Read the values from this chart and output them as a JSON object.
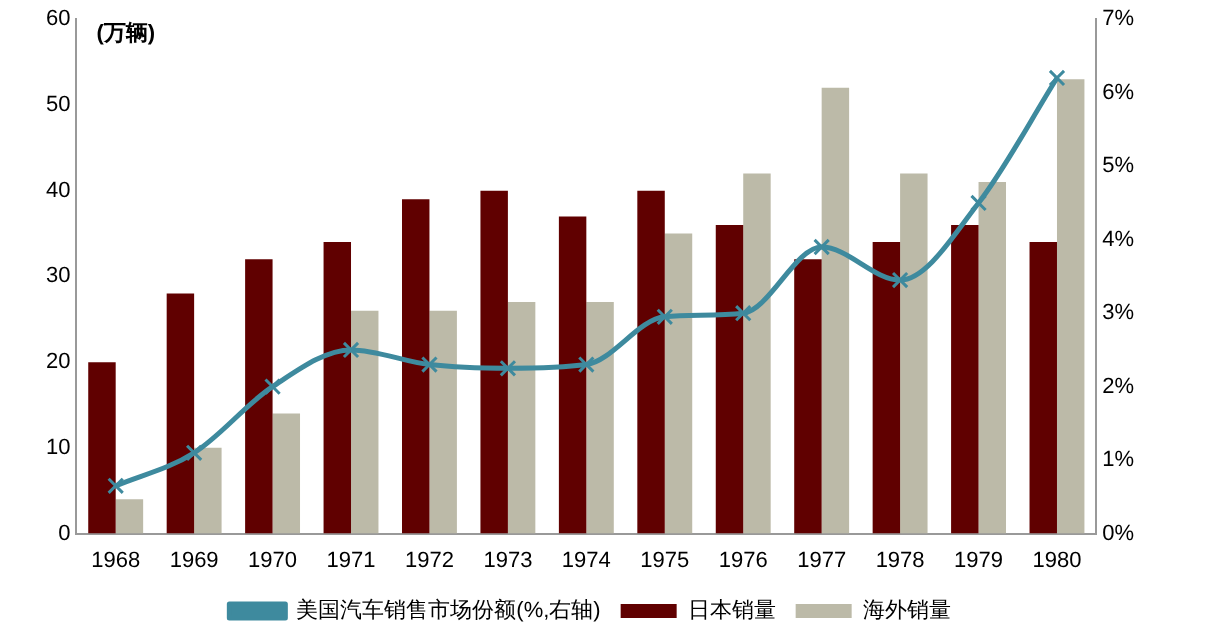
{
  "chart_data": {
    "type": "bar",
    "ylabel": "(万辆)",
    "categories": [
      "1968",
      "1969",
      "1970",
      "1971",
      "1972",
      "1973",
      "1974",
      "1975",
      "1976",
      "1977",
      "1978",
      "1979",
      "1980"
    ],
    "series": [
      {
        "name": "日本销量",
        "color": "#600000",
        "values": [
          20,
          28,
          32,
          34,
          39,
          40,
          37,
          40,
          36,
          32,
          34,
          36,
          34
        ]
      },
      {
        "name": "海外销量",
        "color": "#bcbaa8",
        "values": [
          4,
          10,
          14,
          26,
          26,
          27,
          27,
          35,
          42,
          52,
          42,
          41,
          53
        ]
      },
      {
        "name": "美国汽车销售市场份额(%,右轴)",
        "type": "line",
        "axis": "y2",
        "color": "#3e8a9e",
        "marker": "cross",
        "values": [
          0.65,
          1.1,
          2.0,
          2.5,
          2.3,
          2.25,
          2.3,
          2.95,
          3.0,
          3.9,
          3.45,
          4.5,
          6.2
        ]
      }
    ],
    "ylim": [
      0,
      60
    ],
    "yticks": [
      0,
      10,
      20,
      30,
      40,
      50,
      60
    ],
    "y2lim": [
      0,
      7
    ],
    "y2ticks": [
      {
        "value": 0,
        "label": "0%"
      },
      {
        "value": 1,
        "label": "1%"
      },
      {
        "value": 2,
        "label": "2%"
      },
      {
        "value": 3,
        "label": "3%"
      },
      {
        "value": 4,
        "label": "4%"
      },
      {
        "value": 5,
        "label": "5%"
      },
      {
        "value": 6,
        "label": "6%"
      },
      {
        "value": 7,
        "label": "7%"
      }
    ],
    "grid": false,
    "legend": "bottom"
  }
}
